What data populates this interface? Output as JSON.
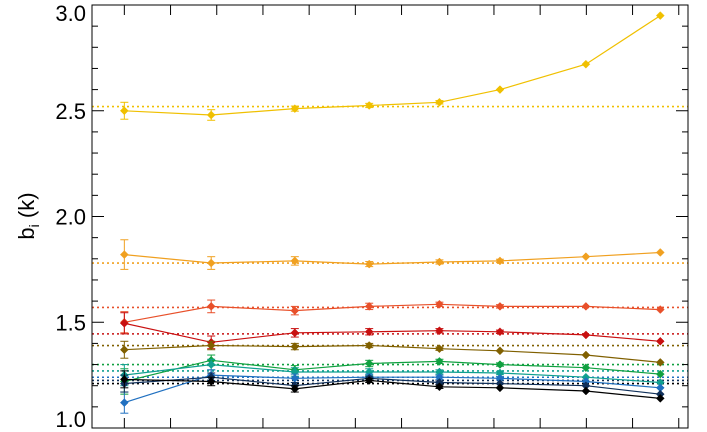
{
  "chart_data": {
    "type": "line",
    "ylabel": "b_i (k)",
    "ylabel_main": "b",
    "ylabel_sub": "i",
    "ylabel_rest": " (k)",
    "xlabel": "",
    "title": "",
    "ylim": [
      1.0,
      3.0
    ],
    "xlim": [
      -0.7,
      12.2
    ],
    "y_ticks": [
      "1.0",
      "1.5",
      "2.0",
      "2.5",
      "3.0"
    ],
    "y_tick_values": [
      1.0,
      1.5,
      2.0,
      2.5,
      3.0
    ],
    "x_major_ticks": [
      0,
      1,
      2,
      3,
      4,
      5,
      6,
      7,
      8,
      9,
      10,
      11,
      12
    ],
    "grid": false,
    "legend": "none",
    "x": [
      0,
      1.88,
      3.69,
      5.3,
      6.82,
      8.13,
      9.99,
      11.6
    ],
    "series": [
      {
        "color": "#f0c000",
        "values": [
          2.5,
          2.48,
          2.51,
          2.525,
          2.54,
          2.6,
          2.72,
          2.95
        ],
        "errors": [
          0.04,
          0.025,
          0.012,
          0.01,
          0.008,
          0.005,
          0.005,
          0.005
        ],
        "reference": 2.52
      },
      {
        "color": "#f0a020",
        "values": [
          1.82,
          1.78,
          1.79,
          1.775,
          1.785,
          1.79,
          1.81,
          1.83
        ],
        "errors": [
          0.07,
          0.03,
          0.02,
          0.012,
          0.01,
          0.008,
          0.005,
          0.005
        ],
        "reference": 1.78
      },
      {
        "color": "#e8502a",
        "values": [
          1.5,
          1.575,
          1.555,
          1.575,
          1.585,
          1.575,
          1.575,
          1.56
        ],
        "errors": [
          0.05,
          0.03,
          0.02,
          0.015,
          0.01,
          0.008,
          0.006,
          0.005
        ],
        "reference": 1.57
      },
      {
        "color": "#c81010",
        "values": [
          1.495,
          1.405,
          1.45,
          1.455,
          1.46,
          1.455,
          1.44,
          1.41
        ],
        "errors": [
          0.05,
          0.03,
          0.02,
          0.015,
          0.01,
          0.008,
          0.006,
          0.005
        ],
        "reference": 1.445
      },
      {
        "color": "#806000",
        "values": [
          1.37,
          1.39,
          1.385,
          1.39,
          1.375,
          1.365,
          1.345,
          1.31
        ],
        "errors": [
          0.04,
          0.02,
          0.015,
          0.01,
          0.008,
          0.006,
          0.005,
          0.005
        ],
        "reference": 1.39
      },
      {
        "color": "#10a040",
        "values": [
          1.22,
          1.32,
          1.275,
          1.305,
          1.315,
          1.3,
          1.285,
          1.255
        ],
        "errors": [
          0.06,
          0.025,
          0.02,
          0.015,
          0.01,
          0.008,
          0.006,
          0.005
        ],
        "reference": 1.3
      },
      {
        "color": "#10a090",
        "values": [
          1.25,
          1.3,
          1.265,
          1.265,
          1.265,
          1.26,
          1.24,
          1.215
        ],
        "errors": [
          0.05,
          0.025,
          0.02,
          0.015,
          0.01,
          0.008,
          0.006,
          0.005
        ],
        "reference": 1.27
      },
      {
        "color": "#2070c0",
        "values": [
          1.12,
          1.25,
          1.235,
          1.24,
          1.24,
          1.235,
          1.22,
          1.19
        ],
        "errors": [
          0.05,
          0.025,
          0.02,
          0.015,
          0.01,
          0.008,
          0.006,
          0.005
        ],
        "reference": 1.24
      },
      {
        "color": "#10305a",
        "values": [
          1.21,
          1.24,
          1.2,
          1.235,
          1.215,
          1.21,
          1.2,
          1.16
        ],
        "errors": [
          0.04,
          0.02,
          0.015,
          0.01,
          0.008,
          0.006,
          0.005,
          0.005
        ],
        "reference": 1.225
      },
      {
        "color": "#000000",
        "values": [
          1.23,
          1.22,
          1.185,
          1.225,
          1.195,
          1.19,
          1.175,
          1.14
        ],
        "errors": [
          0.04,
          0.02,
          0.015,
          0.01,
          0.008,
          0.006,
          0.005,
          0.005
        ],
        "reference": 1.21
      }
    ]
  }
}
